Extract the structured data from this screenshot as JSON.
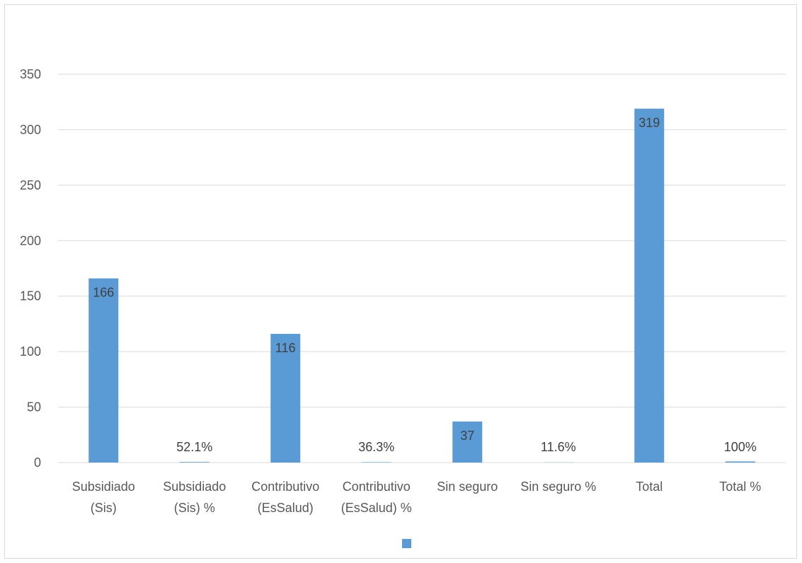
{
  "chart_data": {
    "type": "bar",
    "categories": [
      [
        "Subsidiado",
        "(Sis)"
      ],
      [
        "Subsidiado",
        "(Sis) %"
      ],
      [
        "Contributivo",
        "(EsSalud)"
      ],
      [
        "Contributivo",
        "(EsSalud) %"
      ],
      [
        "Sin seguro"
      ],
      [
        "Sin seguro %"
      ],
      [
        "Total"
      ],
      [
        "Total %"
      ]
    ],
    "series": [
      {
        "values": [
          166,
          0.521,
          116,
          0.363,
          37,
          0.116,
          319,
          1.0
        ],
        "data_labels": [
          "166",
          "52.1%",
          "116",
          "36.3%",
          "37",
          "11.6%",
          "319",
          "100%"
        ]
      }
    ],
    "ylim": [
      0,
      350
    ],
    "yticks": [
      0,
      50,
      100,
      150,
      200,
      250,
      300,
      350
    ],
    "grid": true,
    "legend": "bottom",
    "colors": {
      "bar": "#5b9bd5",
      "grid": "#d9d9d9",
      "axis_text": "#595959",
      "label_text": "#404040"
    }
  }
}
